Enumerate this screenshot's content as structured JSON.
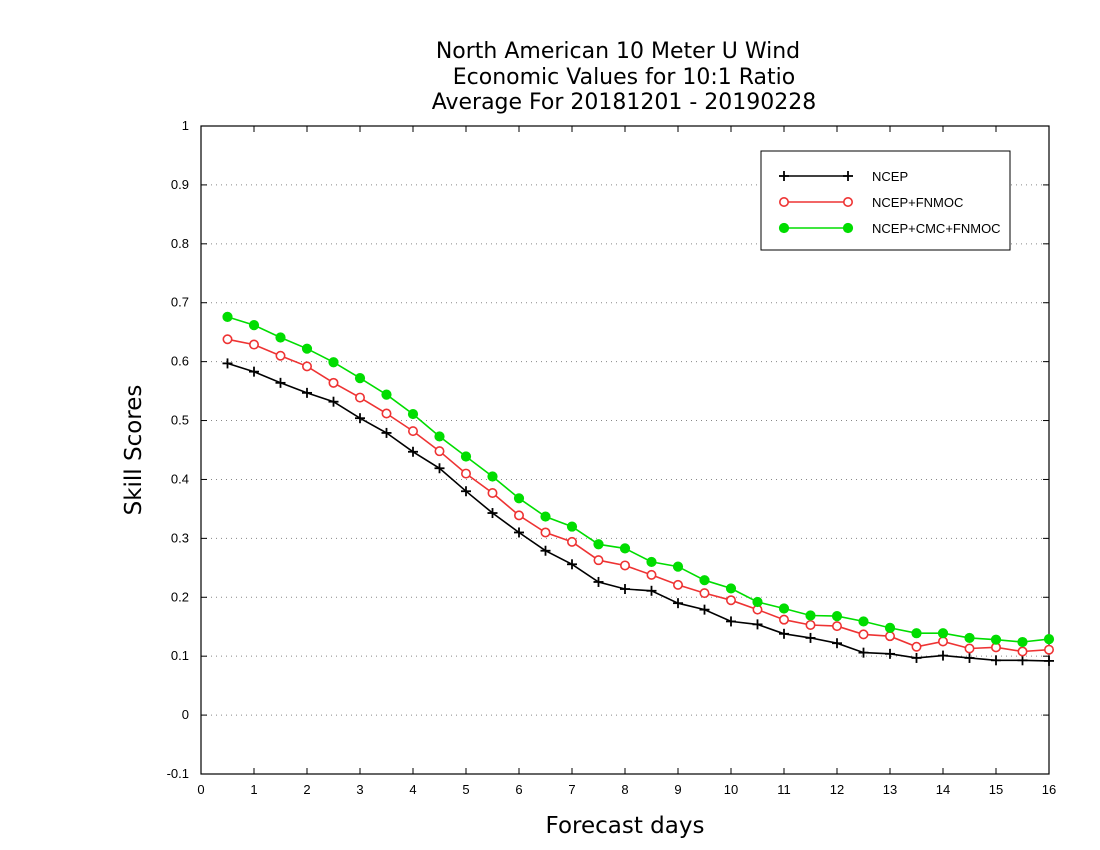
{
  "chart_data": {
    "type": "line",
    "title": [
      "North American 10 Meter U Wind",
      "Economic Values for 10:1 Ratio",
      "Average For 20181201 - 20190228"
    ],
    "xlabel": "Forecast days",
    "ylabel": "Skill Scores",
    "xlim": [
      0,
      16
    ],
    "ylim": [
      -0.1,
      1
    ],
    "xticks": [
      "0",
      "1",
      "2",
      "3",
      "4",
      "5",
      "6",
      "7",
      "8",
      "9",
      "10",
      "11",
      "12",
      "13",
      "14",
      "15",
      "16"
    ],
    "yticks": [
      "-0.1",
      "0",
      "0.1",
      "0.2",
      "0.3",
      "0.4",
      "0.5",
      "0.6",
      "0.7",
      "0.8",
      "0.9",
      "1"
    ],
    "grid": "horizontal dotted",
    "legend_position": "top-right",
    "x": [
      0.5,
      1,
      1.5,
      2,
      2.5,
      3,
      3.5,
      4,
      4.5,
      5,
      5.5,
      6,
      6.5,
      7,
      7.5,
      8,
      8.5,
      9,
      9.5,
      10,
      10.5,
      11,
      11.5,
      12,
      12.5,
      13,
      13.5,
      14,
      14.5,
      15,
      15.5,
      16
    ],
    "series": [
      {
        "name": "NCEP",
        "color": "#000000",
        "marker": "plus",
        "values": [
          0.597,
          0.583,
          0.564,
          0.547,
          0.532,
          0.504,
          0.479,
          0.447,
          0.419,
          0.38,
          0.343,
          0.31,
          0.279,
          0.256,
          0.226,
          0.214,
          0.211,
          0.19,
          0.179,
          0.159,
          0.154,
          0.138,
          0.131,
          0.122,
          0.106,
          0.104,
          0.097,
          0.101,
          0.097,
          0.093,
          0.093,
          0.092
        ]
      },
      {
        "name": "NCEP+FNMOC",
        "color": "#ee3333",
        "marker": "open-circle",
        "values": [
          0.638,
          0.629,
          0.61,
          0.592,
          0.564,
          0.539,
          0.512,
          0.482,
          0.448,
          0.41,
          0.377,
          0.339,
          0.31,
          0.294,
          0.263,
          0.254,
          0.238,
          0.221,
          0.207,
          0.195,
          0.179,
          0.162,
          0.153,
          0.151,
          0.137,
          0.134,
          0.116,
          0.125,
          0.113,
          0.115,
          0.108,
          0.111
        ]
      },
      {
        "name": "NCEP+CMC+FNMOC",
        "color": "#00dd00",
        "marker": "filled-circle",
        "values": [
          0.676,
          0.662,
          0.641,
          0.622,
          0.599,
          0.572,
          0.544,
          0.511,
          0.473,
          0.439,
          0.405,
          0.368,
          0.337,
          0.32,
          0.29,
          0.283,
          0.26,
          0.252,
          0.229,
          0.215,
          0.192,
          0.181,
          0.169,
          0.168,
          0.159,
          0.148,
          0.139,
          0.139,
          0.131,
          0.128,
          0.124,
          0.129
        ]
      }
    ]
  }
}
